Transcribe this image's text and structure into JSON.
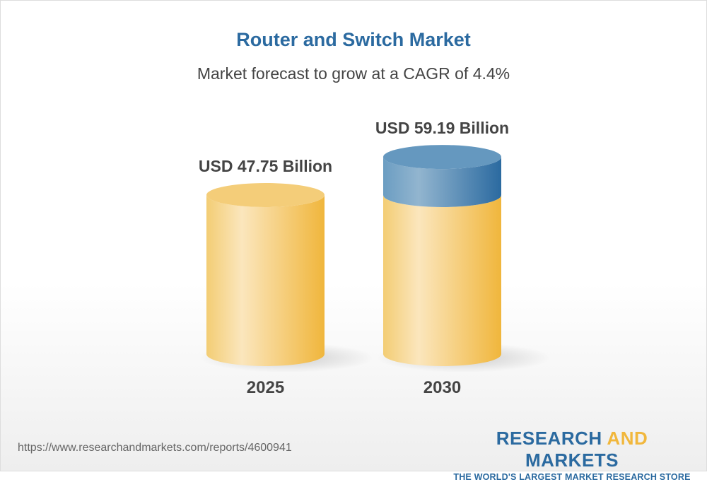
{
  "title": "Router and Switch Market",
  "subtitle": "Market forecast to grow at a CAGR of 4.4%",
  "url": "https://www.researchandmarkets.com/reports/4600941",
  "logo": {
    "word1": "RESEARCH",
    "word2": "AND",
    "word3": "MARKETS",
    "tagline": "THE WORLD'S LARGEST MARKET RESEARCH STORE"
  },
  "colors": {
    "base": "#f1b73c",
    "growth": "#2b6aa0",
    "title": "#2b6aa0"
  },
  "chart_data": {
    "type": "bar",
    "style": "3d-cylinder",
    "categories": [
      "2025",
      "2030"
    ],
    "values": [
      47.75,
      59.19
    ],
    "data_labels": [
      "USD 47.75 Billion",
      "USD 59.19 Billion"
    ],
    "unit": "USD Billion",
    "cagr": "4.4%",
    "grid": false
  }
}
